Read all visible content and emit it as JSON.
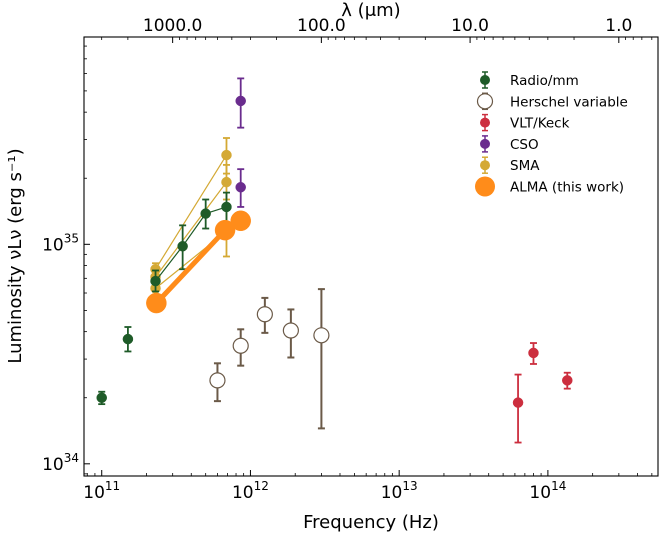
{
  "chart_data": {
    "type": "scatter",
    "xlabel": "Frequency (Hz)",
    "ylabel": "Luminosity νLν (erg s⁻¹)",
    "top_xlabel": "λ (μm)",
    "x_scale": "log",
    "y_scale": "log",
    "xlim": [
      76000000000.0,
      550000000000000.0
    ],
    "ylim": [
      8.8e+33,
      8.8e+35
    ],
    "x_ticks": [
      {
        "value": 100000000000.0,
        "base": "10",
        "exp": "11"
      },
      {
        "value": 1000000000000.0,
        "base": "10",
        "exp": "12"
      },
      {
        "value": 10000000000000.0,
        "base": "10",
        "exp": "13"
      },
      {
        "value": 100000000000000.0,
        "base": "10",
        "exp": "14"
      }
    ],
    "y_ticks": [
      {
        "value": 1e+34,
        "base": "10",
        "exp": "34"
      },
      {
        "value": 1e+35,
        "base": "10",
        "exp": "35"
      }
    ],
    "top_ticks": [
      {
        "lambda_um": 1000,
        "label": "1000.0"
      },
      {
        "lambda_um": 100,
        "label": "100.0"
      },
      {
        "lambda_um": 10,
        "label": "10.0"
      },
      {
        "lambda_um": 1,
        "label": "1.0"
      }
    ],
    "legend": {
      "placement": "top-right",
      "entries": [
        {
          "series": "radio",
          "label": "Radio/mm"
        },
        {
          "series": "herschel",
          "label": "Herschel variable"
        },
        {
          "series": "vlt",
          "label": "VLT/Keck"
        },
        {
          "series": "cso",
          "label": "CSO"
        },
        {
          "series": "sma",
          "label": "SMA"
        },
        {
          "series": "alma",
          "label": "ALMA (this work)"
        }
      ]
    },
    "series": [
      {
        "id": "sma",
        "name": "SMA",
        "color": "#d4a934",
        "marker": "filled",
        "connected": true,
        "lines": [
          [
            [
              230000000000.0,
              7.7e+34
            ],
            [
              690000000000.0,
              2.55e+35
            ]
          ],
          [
            [
              230000000000.0,
              7.1e+34
            ],
            [
              690000000000.0,
              1.92e+35
            ]
          ],
          [
            [
              230000000000.0,
              6.3e+34
            ],
            [
              690000000000.0,
              1.15e+35
            ]
          ]
        ],
        "points": [
          {
            "x": 230000000000.0,
            "y": 7.7e+34,
            "lo": 7.2e+34,
            "hi": 8.2e+34
          },
          {
            "x": 230000000000.0,
            "y": 7.1e+34,
            "lo": 6.7e+34,
            "hi": 7.5e+34
          },
          {
            "x": 230000000000.0,
            "y": 6.3e+34,
            "lo": 5.9e+34,
            "hi": 6.7e+34
          },
          {
            "x": 690000000000.0,
            "y": 2.55e+35,
            "lo": 2.1e+35,
            "hi": 3.05e+35
          },
          {
            "x": 690000000000.0,
            "y": 1.92e+35,
            "lo": 1.6e+35,
            "hi": 2.3e+35
          },
          {
            "x": 690000000000.0,
            "y": 1.15e+35,
            "lo": 8.8e+34,
            "hi": 1.45e+35
          }
        ]
      },
      {
        "id": "radio",
        "name": "Radio/mm",
        "color": "#1e5b28",
        "marker": "filled",
        "connected": true,
        "lines": [
          [
            [
              230000000000.0,
              6.8e+34
            ],
            [
              350000000000.0,
              9.8e+34
            ],
            [
              500000000000.0,
              1.38e+35
            ],
            [
              690000000000.0,
              1.48e+35
            ]
          ]
        ],
        "points": [
          {
            "x": 100000000000.0,
            "y": 2e+34,
            "lo": 1.87e+34,
            "hi": 2.13e+34
          },
          {
            "x": 150000000000.0,
            "y": 3.7e+34,
            "lo": 3.25e+34,
            "hi": 4.2e+34
          },
          {
            "x": 230000000000.0,
            "y": 6.8e+34,
            "lo": 6.1e+34,
            "hi": 7.6e+34
          },
          {
            "x": 350000000000.0,
            "y": 9.8e+34,
            "lo": 7.7e+34,
            "hi": 1.22e+35
          },
          {
            "x": 500000000000.0,
            "y": 1.38e+35,
            "lo": 1.18e+35,
            "hi": 1.6e+35
          },
          {
            "x": 690000000000.0,
            "y": 1.48e+35,
            "lo": 1.25e+35,
            "hi": 1.72e+35
          }
        ]
      },
      {
        "id": "herschel",
        "name": "Herschel variable",
        "color": "#6b5a48",
        "marker": "open",
        "connected": false,
        "points": [
          {
            "x": 600000000000.0,
            "y": 2.4e+34,
            "lo": 1.93e+34,
            "hi": 2.87e+34
          },
          {
            "x": 860000000000.0,
            "y": 3.45e+34,
            "lo": 2.8e+34,
            "hi": 4.1e+34
          },
          {
            "x": 1250000000000.0,
            "y": 4.8e+34,
            "lo": 3.95e+34,
            "hi": 5.7e+34
          },
          {
            "x": 1870000000000.0,
            "y": 4.05e+34,
            "lo": 3.05e+34,
            "hi": 5.05e+34
          },
          {
            "x": 3000000000000.0,
            "y": 3.85e+34,
            "lo": 1.45e+34,
            "hi": 6.25e+34
          }
        ]
      },
      {
        "id": "vlt",
        "name": "VLT/Keck",
        "color": "#cc2e3e",
        "marker": "filled",
        "connected": false,
        "points": [
          {
            "x": 63000000000000.0,
            "y": 1.9e+34,
            "lo": 1.25e+34,
            "hi": 2.55e+34
          },
          {
            "x": 80000000000000.0,
            "y": 3.2e+34,
            "lo": 2.85e+34,
            "hi": 3.55e+34
          },
          {
            "x": 135000000000000.0,
            "y": 2.4e+34,
            "lo": 2.2e+34,
            "hi": 2.6e+34
          }
        ]
      },
      {
        "id": "cso",
        "name": "CSO",
        "color": "#6a2c8e",
        "marker": "filled",
        "connected": false,
        "points": [
          {
            "x": 860000000000.0,
            "y": 4.5e+35,
            "lo": 3.4e+35,
            "hi": 5.7e+35
          },
          {
            "x": 860000000000.0,
            "y": 1.82e+35,
            "lo": 1.48e+35,
            "hi": 2.2e+35
          }
        ]
      },
      {
        "id": "alma",
        "name": "ALMA (this work)",
        "color": "#ff8c1a",
        "marker": "large",
        "connected": true,
        "lines": [
          [
            [
              233000000000.0,
              5.4e+34
            ],
            [
              675000000000.0,
              1.16e+35
            ],
            [
              860000000000.0,
              1.28e+35
            ]
          ]
        ],
        "points": [
          {
            "x": 233000000000.0,
            "y": 5.4e+34
          },
          {
            "x": 675000000000.0,
            "y": 1.16e+35
          },
          {
            "x": 860000000000.0,
            "y": 1.28e+35
          }
        ]
      }
    ]
  }
}
